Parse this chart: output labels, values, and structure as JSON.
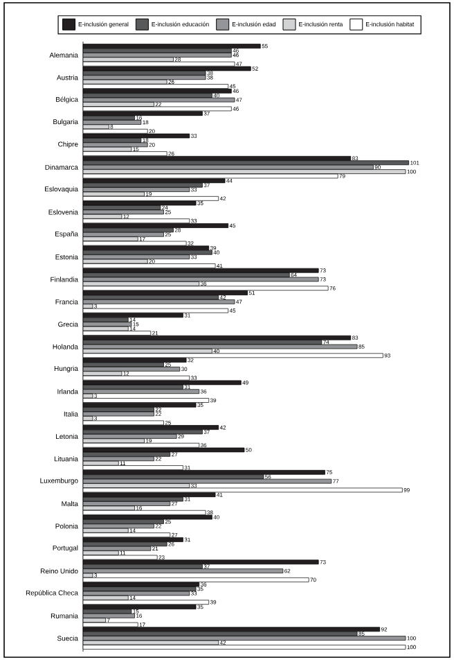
{
  "chart_data": {
    "type": "bar",
    "orientation": "horizontal",
    "data_labels": true,
    "legend": "top",
    "categories": [
      "Alemania",
      "Austria",
      "Bélgica",
      "Bulgaria",
      "Chipre",
      "Dinamarca",
      "Eslovaquia",
      "Eslovenia",
      "España",
      "Estonia",
      "Finlandia",
      "Francia",
      "Grecia",
      "Holanda",
      "Hungria",
      "Irlanda",
      "Italia",
      "Letonia",
      "Lituania",
      "Luxemburgo",
      "Malta",
      "Polonia",
      "Portugal",
      "Reino Unido",
      "República Checa",
      "Rumania",
      "Suecia"
    ],
    "series": [
      {
        "name": "E-inclusión general",
        "color": "#231f20",
        "values": [
          55,
          52,
          46,
          37,
          33,
          83,
          44,
          35,
          45,
          39,
          73,
          51,
          31,
          83,
          32,
          49,
          35,
          42,
          50,
          75,
          41,
          40,
          31,
          73,
          36,
          35,
          92
        ]
      },
      {
        "name": "E-inclusión educación",
        "color": "#58595b",
        "values": [
          46,
          38,
          40,
          16,
          18,
          101,
          37,
          24,
          28,
          40,
          64,
          42,
          14,
          74,
          25,
          31,
          22,
          37,
          27,
          56,
          31,
          25,
          26,
          37,
          35,
          15,
          85
        ]
      },
      {
        "name": "E-inclusión edad",
        "color": "#939598",
        "values": [
          46,
          38,
          47,
          18,
          20,
          90,
          33,
          25,
          25,
          33,
          73,
          47,
          15,
          85,
          30,
          36,
          22,
          29,
          22,
          77,
          27,
          22,
          21,
          62,
          33,
          16,
          100
        ]
      },
      {
        "name": "E-inclusión renta",
        "color": "#d1d3d4",
        "values": [
          28,
          26,
          22,
          8,
          15,
          100,
          19,
          12,
          17,
          20,
          36,
          3,
          14,
          40,
          12,
          3,
          3,
          19,
          11,
          33,
          16,
          14,
          11,
          3,
          14,
          7,
          42
        ]
      },
      {
        "name": "E-inclusión habitat",
        "color": "#ffffff",
        "values": [
          47,
          45,
          46,
          20,
          26,
          79,
          42,
          33,
          32,
          41,
          76,
          45,
          21,
          93,
          33,
          39,
          25,
          36,
          31,
          99,
          38,
          27,
          23,
          70,
          39,
          17,
          100
        ]
      }
    ]
  }
}
